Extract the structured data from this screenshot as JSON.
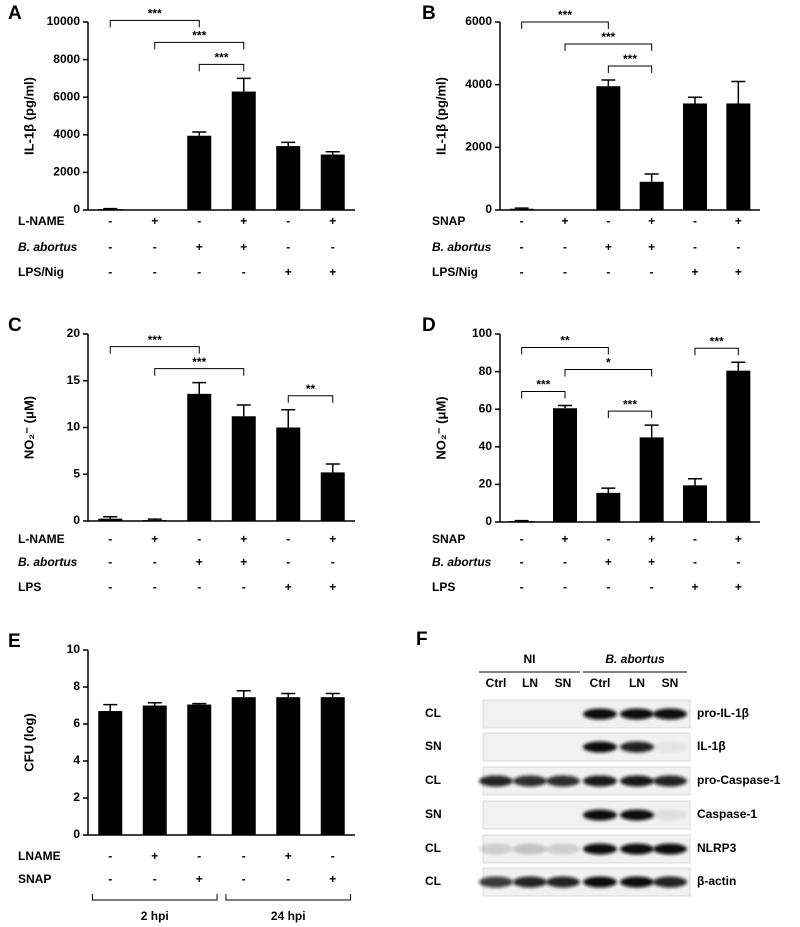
{
  "chart_data": [
    {
      "type": "bar",
      "panel": "A",
      "y_label": "IL-1β (pg/ml)",
      "color": "#000000",
      "categories": [
        null,
        null,
        null,
        null,
        null,
        null
      ],
      "values": [
        50,
        0,
        3950,
        6300,
        3400,
        2950
      ],
      "errors": [
        20,
        0,
        200,
        700,
        200,
        150
      ],
      "ylim": [
        0,
        10000
      ],
      "yticks": [
        0,
        2000,
        4000,
        6000,
        8000,
        10000
      ],
      "conditions": [
        {
          "label": "L-NAME",
          "italic": false,
          "signs": [
            "-",
            "+",
            "-",
            "+",
            "-",
            "+"
          ]
        },
        {
          "label": "B. abortus",
          "italic": true,
          "signs": [
            "-",
            "-",
            "+",
            "+",
            "-",
            "-"
          ]
        },
        {
          "label": "LPS/Nig",
          "italic": false,
          "signs": [
            "-",
            "-",
            "-",
            "-",
            "+",
            "+"
          ]
        }
      ],
      "significance": [
        {
          "between": [
            2,
            3
          ],
          "label": "***"
        },
        {
          "between": [
            1,
            3
          ],
          "label": "***"
        },
        {
          "between": [
            0,
            2
          ],
          "label": "***"
        }
      ]
    },
    {
      "type": "bar",
      "panel": "B",
      "y_label": "IL-1β (pg/ml)",
      "color": "#000000",
      "categories": [
        null,
        null,
        null,
        null,
        null,
        null
      ],
      "values": [
        40,
        0,
        3950,
        900,
        3400,
        3400
      ],
      "errors": [
        20,
        0,
        200,
        250,
        200,
        700
      ],
      "ylim": [
        0,
        6000
      ],
      "yticks": [
        0,
        2000,
        4000,
        6000
      ],
      "conditions": [
        {
          "label": "SNAP",
          "italic": false,
          "signs": [
            "-",
            "+",
            "-",
            "+",
            "-",
            "+"
          ]
        },
        {
          "label": "B. abortus",
          "italic": true,
          "signs": [
            "-",
            "-",
            "+",
            "+",
            "-",
            "-"
          ]
        },
        {
          "label": "LPS/Nig",
          "italic": false,
          "signs": [
            "-",
            "-",
            "-",
            "-",
            "+",
            "+"
          ]
        }
      ],
      "significance": [
        {
          "between": [
            2,
            3
          ],
          "label": "***"
        },
        {
          "between": [
            1,
            3
          ],
          "label": "***"
        },
        {
          "between": [
            0,
            2
          ],
          "label": "***"
        }
      ]
    },
    {
      "type": "bar",
      "panel": "C",
      "y_label": "NO₂⁻ (μM)",
      "color": "#000000",
      "categories": [
        null,
        null,
        null,
        null,
        null,
        null
      ],
      "values": [
        0.25,
        0.1,
        13.6,
        11.2,
        10,
        5.2
      ],
      "errors": [
        0.2,
        0.1,
        1.2,
        1.2,
        1.9,
        0.9
      ],
      "ylim": [
        0,
        20
      ],
      "yticks": [
        0,
        5,
        10,
        15,
        20
      ],
      "conditions": [
        {
          "label": "L-NAME",
          "italic": false,
          "signs": [
            "-",
            "+",
            "-",
            "+",
            "-",
            "+"
          ]
        },
        {
          "label": "B. abortus",
          "italic": true,
          "signs": [
            "-",
            "-",
            "+",
            "+",
            "-",
            "-"
          ]
        },
        {
          "label": "LPS",
          "italic": false,
          "signs": [
            "-",
            "-",
            "-",
            "-",
            "+",
            "+"
          ]
        }
      ],
      "significance": [
        {
          "between": [
            1,
            3
          ],
          "label": "***"
        },
        {
          "between": [
            4,
            5
          ],
          "label": "**"
        },
        {
          "between": [
            0,
            2
          ],
          "label": "***"
        }
      ]
    },
    {
      "type": "bar",
      "panel": "D",
      "y_label": "NO₂⁻ (μM)",
      "color": "#000000",
      "categories": [
        null,
        null,
        null,
        null,
        null,
        null
      ],
      "values": [
        0.5,
        60.5,
        15.5,
        45,
        19.5,
        80.5
      ],
      "errors": [
        0.2,
        1.5,
        2.5,
        6.5,
        3.5,
        4.5
      ],
      "ylim": [
        0,
        100
      ],
      "yticks": [
        0,
        20,
        40,
        60,
        80,
        100
      ],
      "conditions": [
        {
          "label": "SNAP",
          "italic": false,
          "signs": [
            "-",
            "+",
            "-",
            "+",
            "-",
            "+"
          ]
        },
        {
          "label": "B. abortus",
          "italic": true,
          "signs": [
            "-",
            "-",
            "+",
            "+",
            "-",
            "-"
          ]
        },
        {
          "label": "LPS",
          "italic": false,
          "signs": [
            "-",
            "-",
            "-",
            "-",
            "+",
            "+"
          ]
        }
      ],
      "significance": [
        {
          "between": [
            0,
            1
          ],
          "label": "***"
        },
        {
          "between": [
            2,
            3
          ],
          "label": "***"
        },
        {
          "between": [
            1,
            3
          ],
          "label": "*"
        },
        {
          "between": [
            0,
            2
          ],
          "label": "**"
        },
        {
          "between": [
            4,
            5
          ],
          "label": "***"
        }
      ]
    },
    {
      "type": "bar",
      "panel": "E",
      "y_label": "CFU (log)",
      "color": "#000000",
      "categories": [
        null,
        null,
        null,
        null,
        null,
        null
      ],
      "values": [
        6.7,
        7.0,
        7.05,
        7.45,
        7.45,
        7.45
      ],
      "errors": [
        0.35,
        0.15,
        0.05,
        0.35,
        0.2,
        0.2
      ],
      "ylim": [
        0,
        10
      ],
      "yticks": [
        0,
        2,
        4,
        6,
        8,
        10
      ],
      "conditions": [
        {
          "label": "LNAME",
          "italic": false,
          "signs": [
            "-",
            "+",
            "-",
            "-",
            "+",
            "-"
          ]
        },
        {
          "label": "SNAP",
          "italic": false,
          "signs": [
            "-",
            "-",
            "+",
            "-",
            "-",
            "+"
          ]
        }
      ],
      "groups": [
        {
          "label": "2 hpi",
          "between": [
            0,
            2
          ]
        },
        {
          "label": "24 hpi",
          "between": [
            3,
            5
          ]
        }
      ]
    }
  ],
  "blot": {
    "panel": "F",
    "groups": [
      {
        "label": "NI",
        "italic": false,
        "lanes": [
          "Ctrl",
          "LN",
          "SN"
        ]
      },
      {
        "label": "B. abortus",
        "italic": true,
        "lanes": [
          "Ctrl",
          "LN",
          "SN"
        ]
      }
    ],
    "rows": [
      {
        "fraction": "CL",
        "protein": "pro-IL-1β"
      },
      {
        "fraction": "SN",
        "protein": "IL-1β"
      },
      {
        "fraction": "CL",
        "protein": "pro-Caspase-1"
      },
      {
        "fraction": "SN",
        "protein": "Caspase-1"
      },
      {
        "fraction": "CL",
        "protein": "NLRP3"
      },
      {
        "fraction": "CL",
        "protein": "β-actin"
      }
    ]
  }
}
